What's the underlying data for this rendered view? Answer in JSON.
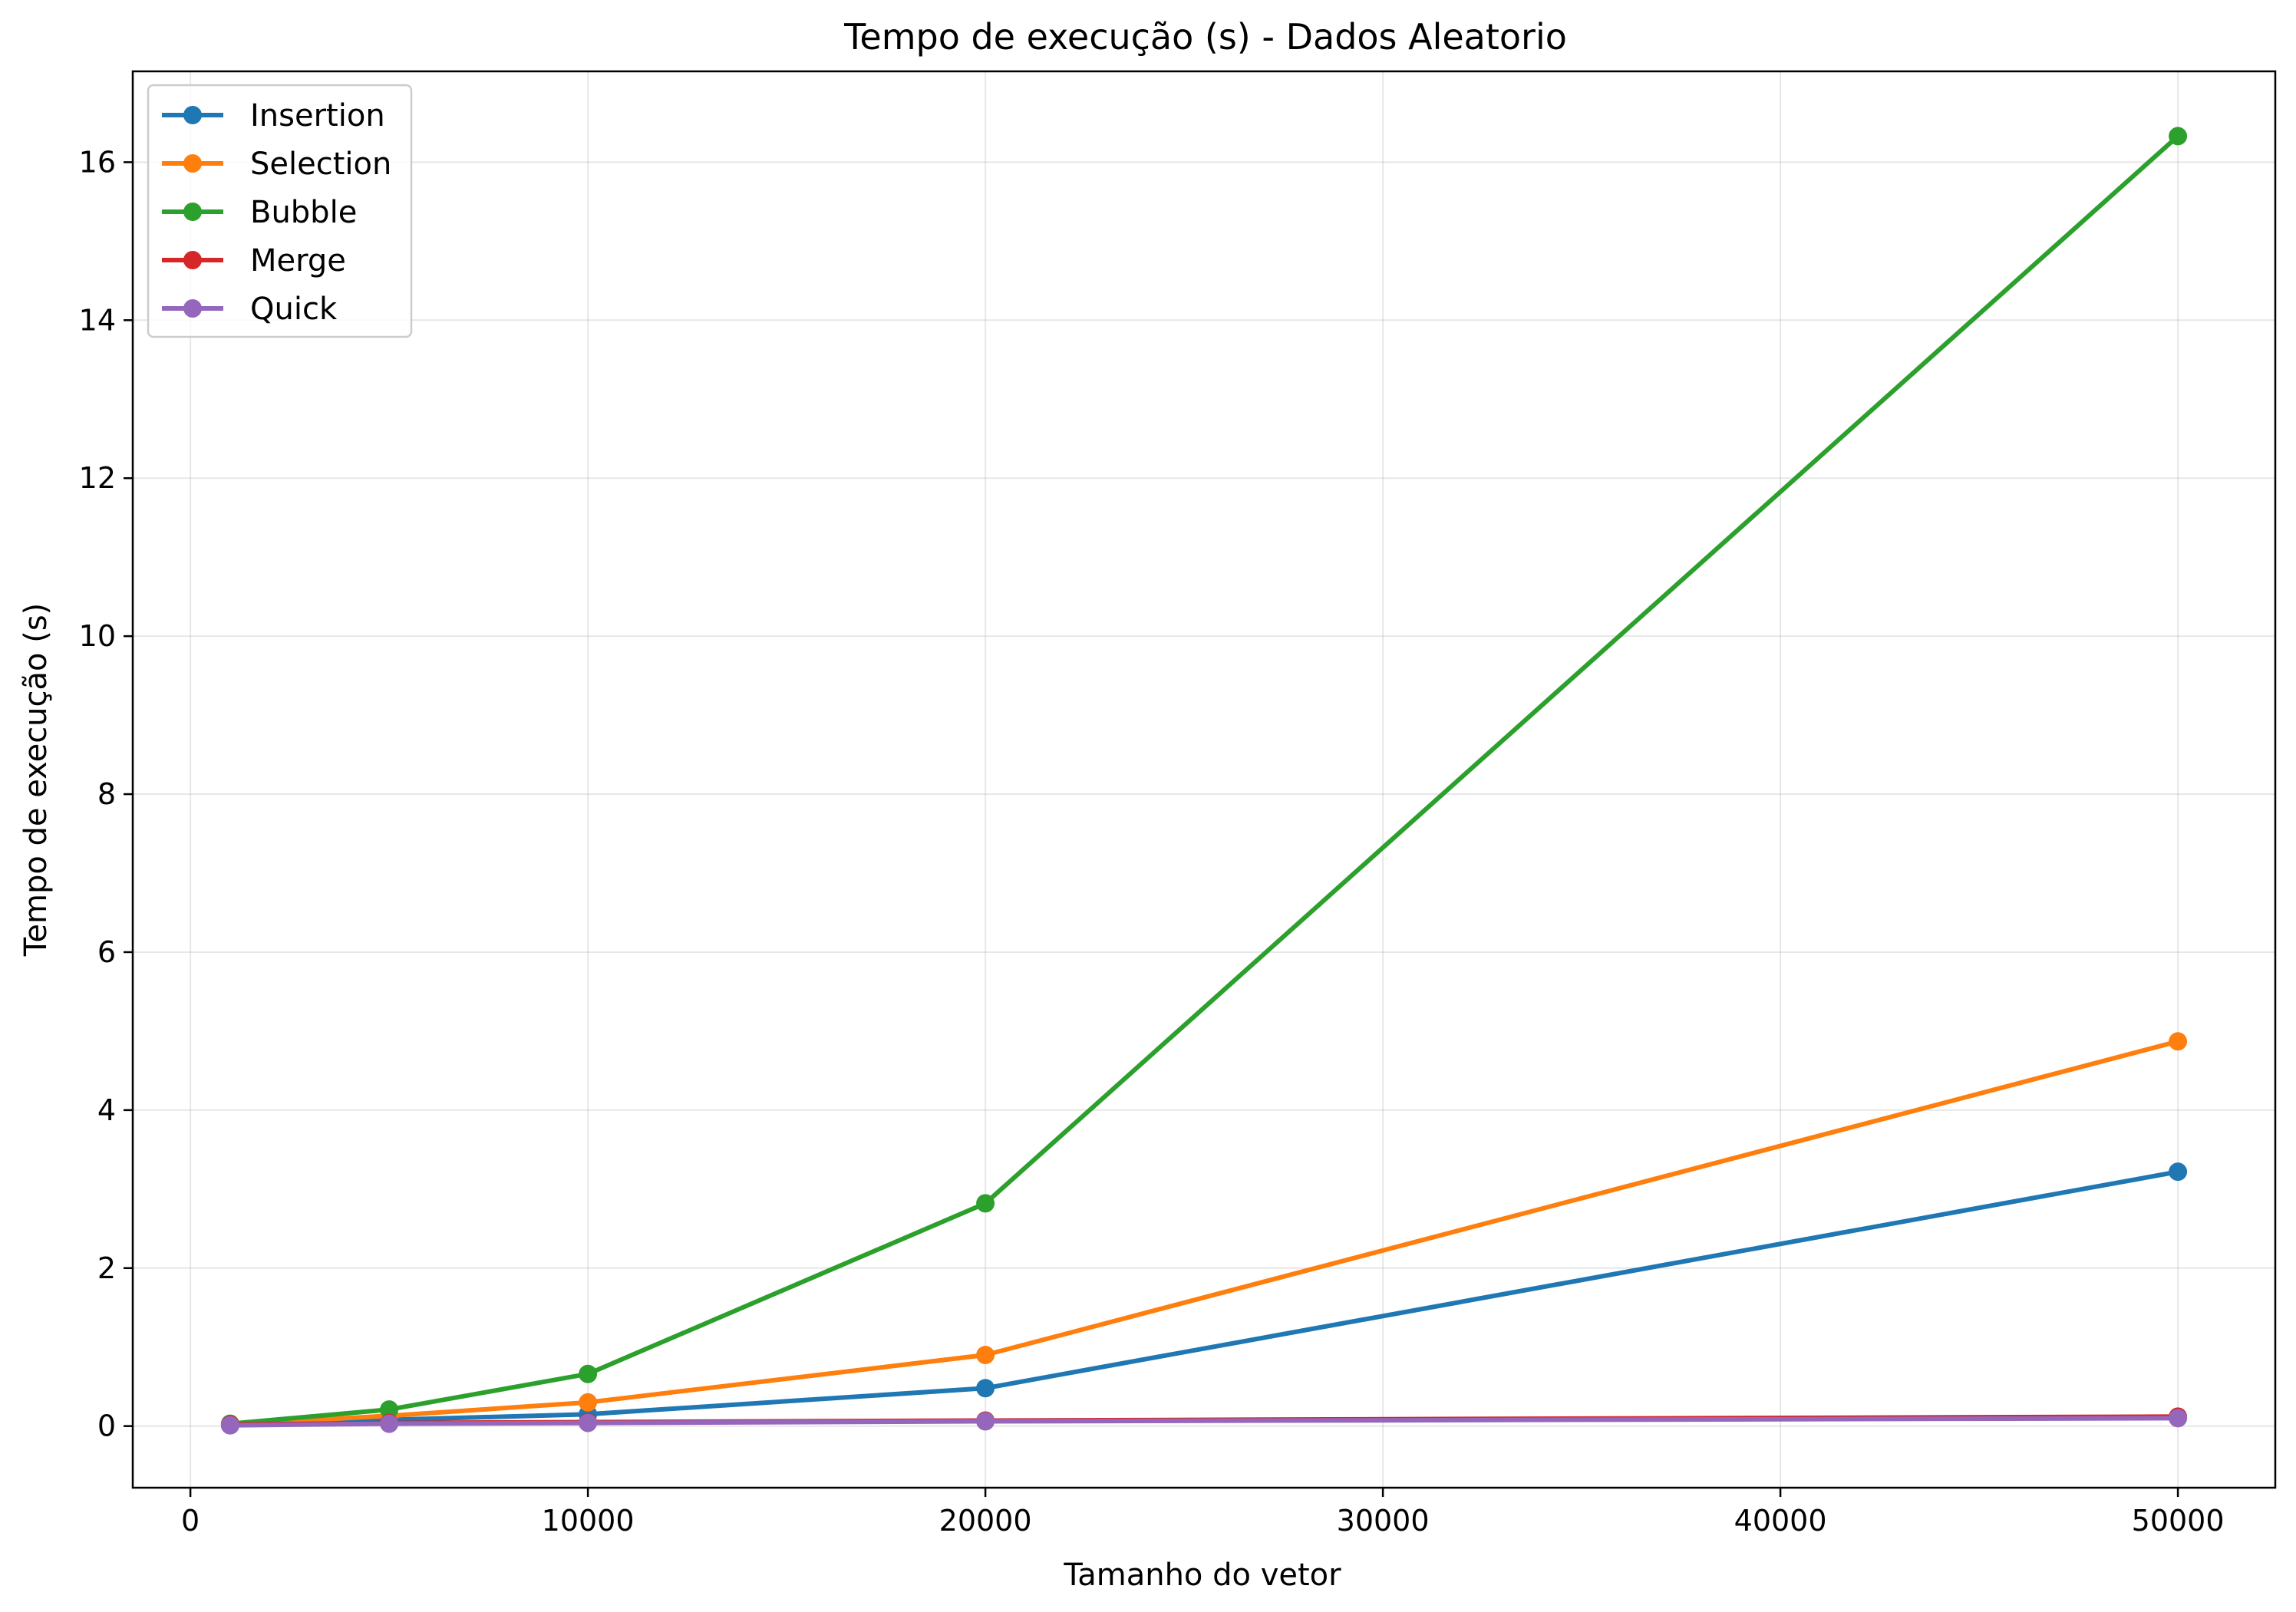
{
  "chart_data": {
    "type": "line",
    "title": "Tempo de execução (s) - Dados Aleatorio",
    "xlabel": "Tamanho do vetor",
    "ylabel": "Tempo de execução (s)",
    "x": [
      1000,
      5000,
      10000,
      20000,
      50000
    ],
    "xlim": [
      -1450,
      52450
    ],
    "ylim": [
      -0.78,
      17.15
    ],
    "xticks": [
      0,
      10000,
      20000,
      30000,
      40000,
      50000
    ],
    "yticks": [
      0,
      2,
      4,
      6,
      8,
      10,
      12,
      14,
      16
    ],
    "grid": true,
    "legend_position": "upper-left",
    "series": [
      {
        "name": "Insertion",
        "color": "#1f77b4",
        "values": [
          0.01,
          0.08,
          0.15,
          0.48,
          3.22
        ]
      },
      {
        "name": "Selection",
        "color": "#ff7f0e",
        "values": [
          0.02,
          0.13,
          0.3,
          0.9,
          4.87
        ]
      },
      {
        "name": "Bubble",
        "color": "#2ca02c",
        "values": [
          0.03,
          0.21,
          0.66,
          2.82,
          16.33
        ]
      },
      {
        "name": "Merge",
        "color": "#d62728",
        "values": [
          0.02,
          0.04,
          0.05,
          0.07,
          0.12
        ]
      },
      {
        "name": "Quick",
        "color": "#9467bd",
        "values": [
          0.01,
          0.03,
          0.04,
          0.06,
          0.1
        ]
      }
    ]
  }
}
